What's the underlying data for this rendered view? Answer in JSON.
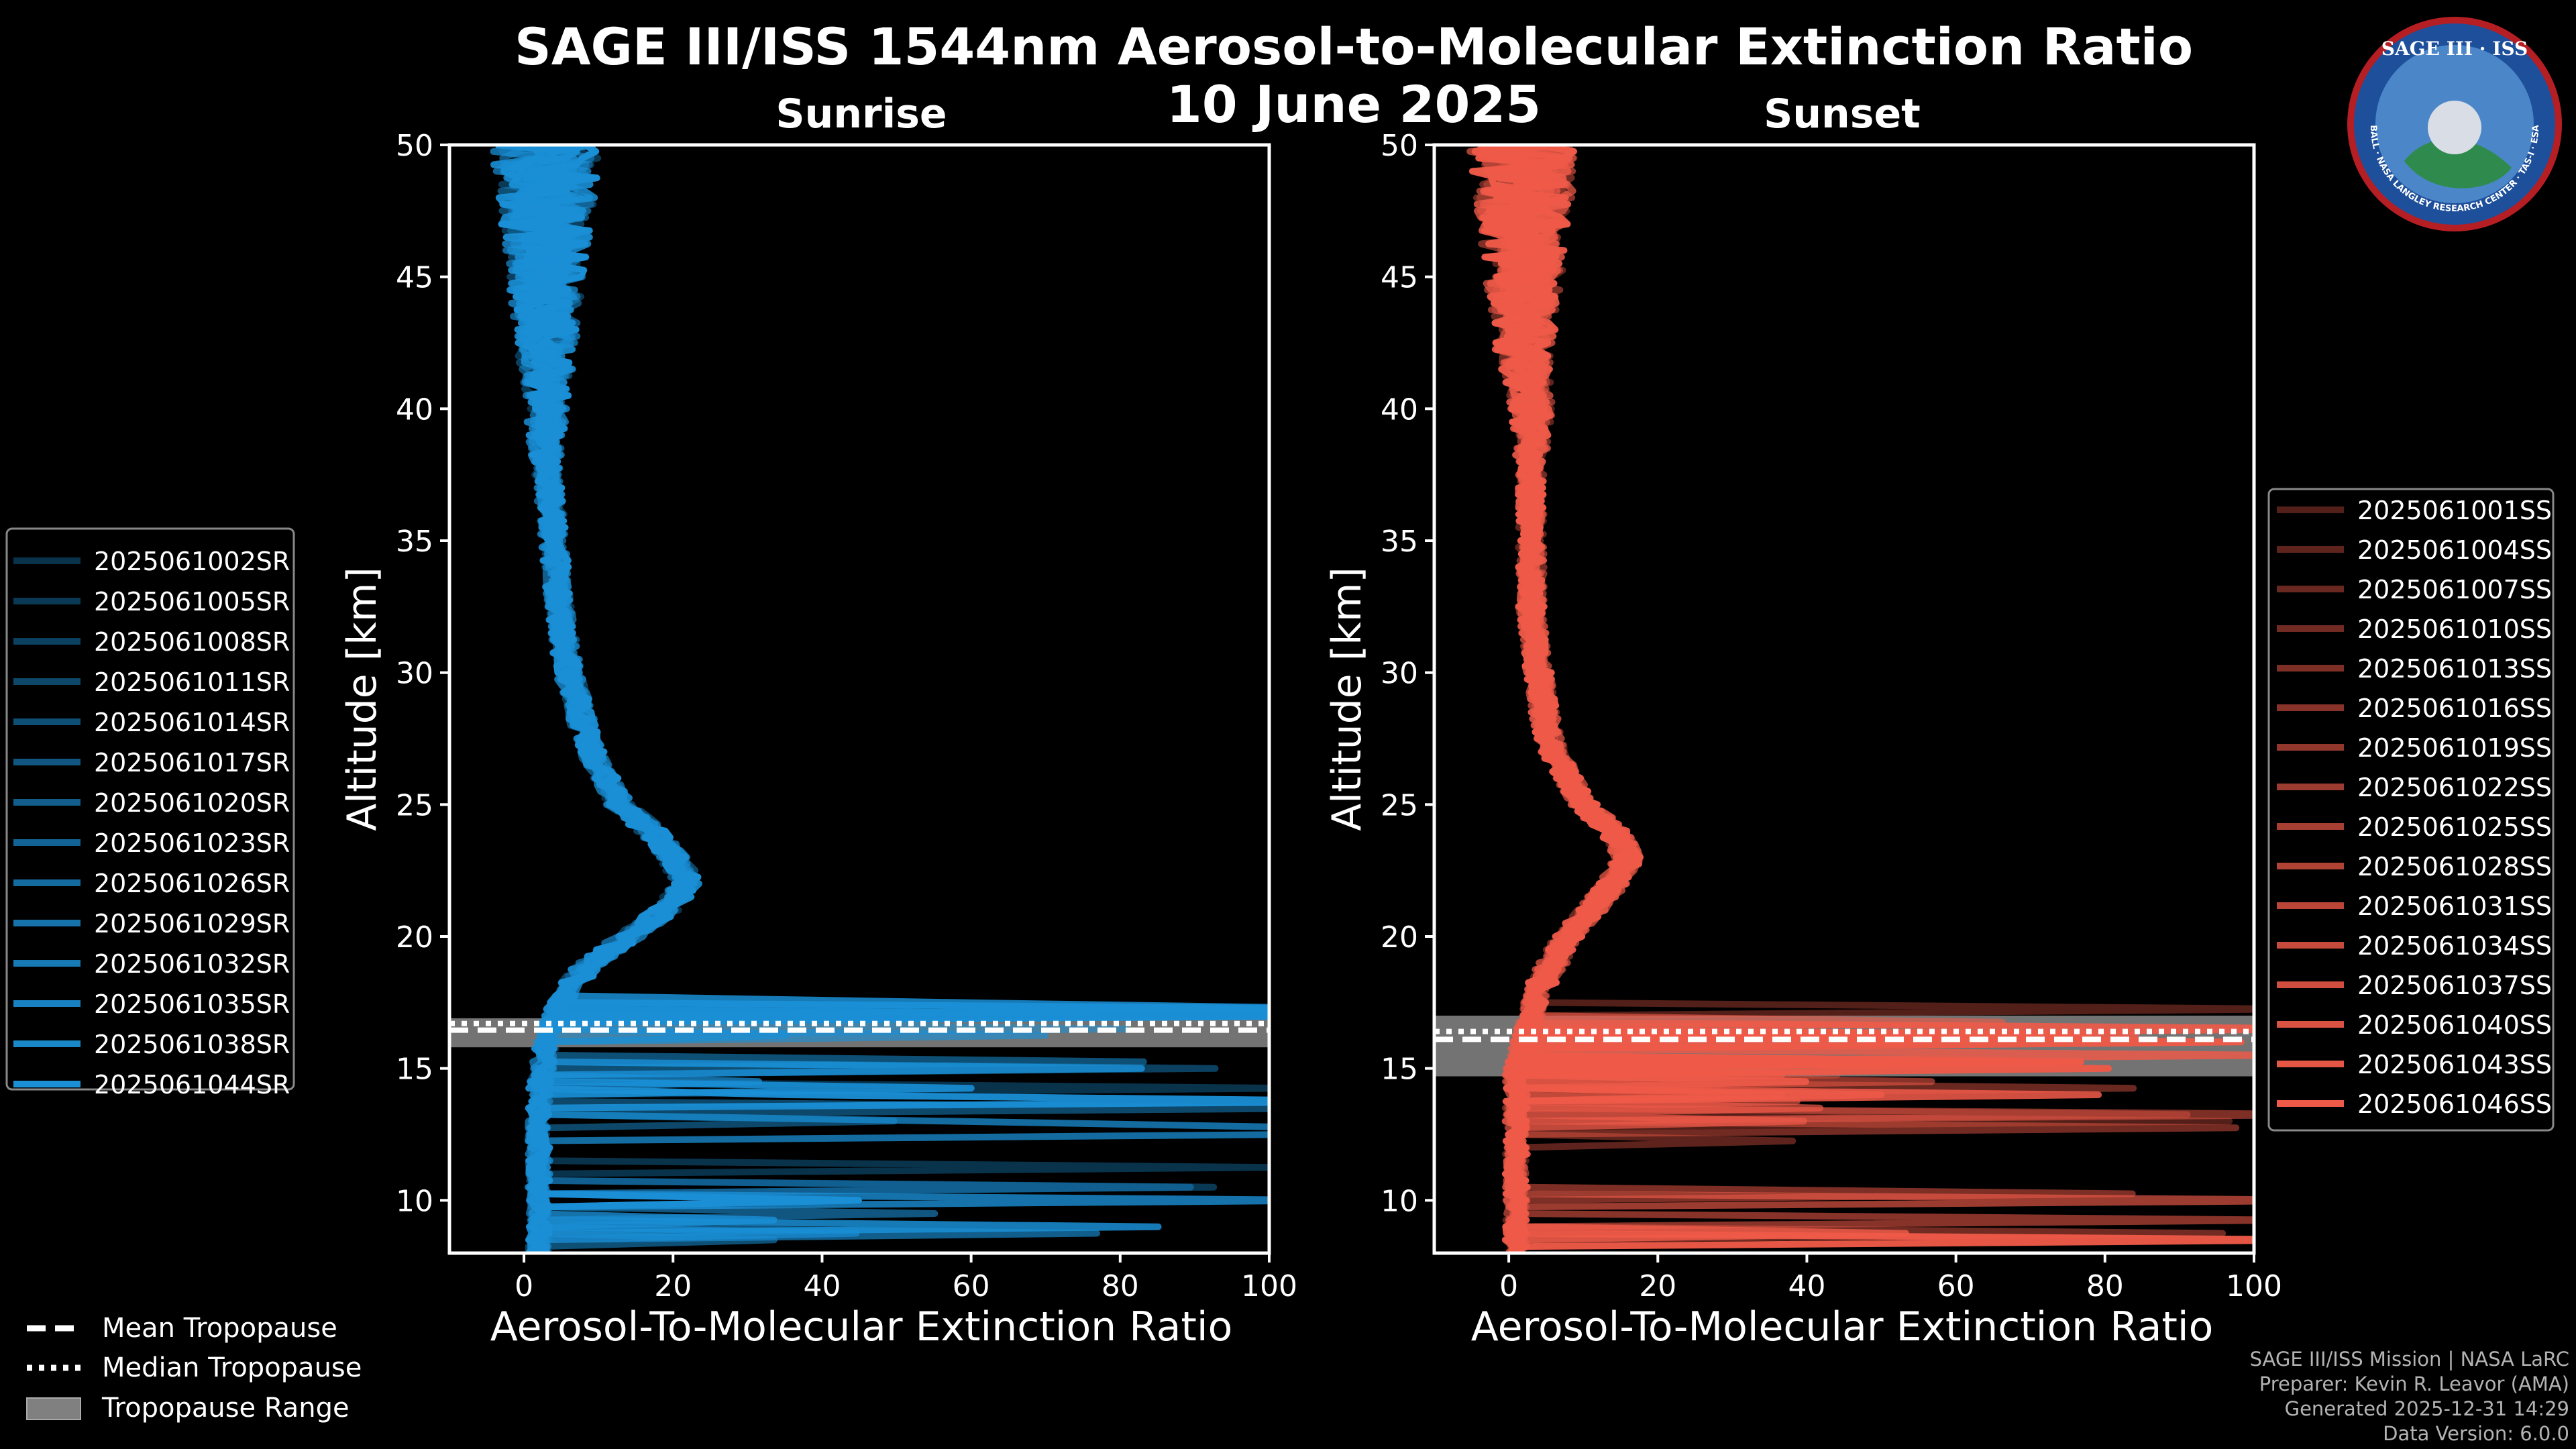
{
  "chart_data": {
    "type": "line",
    "title": "SAGE III/ISS 1544nm Aerosol-to-Molecular Extinction Ratio",
    "subtitle": "10 June 2025",
    "xlim": [
      -10,
      100
    ],
    "ylim": [
      8,
      50
    ],
    "xticks": [
      0,
      20,
      40,
      60,
      80,
      100
    ],
    "yticks": [
      10,
      15,
      20,
      25,
      30,
      35,
      40,
      45,
      50
    ],
    "panels": [
      {
        "name": "Sunrise",
        "xlabel": "Aerosol-To-Molecular Extinction Ratio",
        "ylabel": "Altitude [km]",
        "color": "#1a8fd6",
        "tropopause": {
          "mean_km": 16.45,
          "median_km": 16.7,
          "range_km": [
            15.8,
            16.9
          ]
        },
        "mean_profile": [
          [
            8,
            2
          ],
          [
            10,
            2
          ],
          [
            12,
            2
          ],
          [
            14,
            2
          ],
          [
            16,
            3
          ],
          [
            17,
            4
          ],
          [
            18,
            6
          ],
          [
            19,
            9
          ],
          [
            20,
            14
          ],
          [
            21,
            19
          ],
          [
            22,
            22
          ],
          [
            23,
            20
          ],
          [
            24,
            17
          ],
          [
            25,
            13
          ],
          [
            26,
            11
          ],
          [
            27,
            9
          ],
          [
            28,
            8
          ],
          [
            29,
            7
          ],
          [
            30,
            6
          ],
          [
            32,
            5
          ],
          [
            35,
            4
          ],
          [
            38,
            3
          ],
          [
            40,
            3
          ],
          [
            42,
            3
          ],
          [
            45,
            3
          ],
          [
            48,
            3
          ],
          [
            50,
            3
          ]
        ],
        "series_names": [
          "2025061002SR",
          "2025061005SR",
          "2025061008SR",
          "2025061011SR",
          "2025061014SR",
          "2025061017SR",
          "2025061020SR",
          "2025061023SR",
          "2025061026SR",
          "2025061029SR",
          "2025061032SR",
          "2025061035SR",
          "2025061038SR",
          "2025061044SR"
        ]
      },
      {
        "name": "Sunset",
        "xlabel": "Aerosol-To-Molecular Extinction Ratio",
        "ylabel": "Altitude [km]",
        "color": "#ef5a48",
        "tropopause": {
          "mean_km": 16.1,
          "median_km": 16.4,
          "range_km": [
            14.7,
            17.0
          ]
        },
        "mean_profile": [
          [
            8,
            1
          ],
          [
            10,
            1
          ],
          [
            12,
            1
          ],
          [
            14,
            1
          ],
          [
            15,
            1
          ],
          [
            16,
            2
          ],
          [
            17,
            3
          ],
          [
            18,
            4
          ],
          [
            19,
            6
          ],
          [
            20,
            8
          ],
          [
            21,
            11
          ],
          [
            22,
            14
          ],
          [
            23,
            16
          ],
          [
            24,
            14
          ],
          [
            25,
            10
          ],
          [
            26,
            8
          ],
          [
            27,
            6
          ],
          [
            28,
            5
          ],
          [
            30,
            4
          ],
          [
            32,
            3
          ],
          [
            35,
            3
          ],
          [
            38,
            3
          ],
          [
            40,
            3
          ],
          [
            42,
            2
          ],
          [
            45,
            2
          ],
          [
            48,
            2
          ],
          [
            50,
            2
          ]
        ],
        "series_names": [
          "2025061001SS",
          "2025061004SS",
          "2025061007SS",
          "2025061010SS",
          "2025061013SS",
          "2025061016SS",
          "2025061019SS",
          "2025061022SS",
          "2025061025SS",
          "2025061028SS",
          "2025061031SS",
          "2025061034SS",
          "2025061037SS",
          "2025061040SS",
          "2025061043SS",
          "2025061046SS"
        ]
      }
    ],
    "tropopause_legend": [
      "Mean Tropopause",
      "Median Tropopause",
      "Tropopause Range"
    ]
  },
  "logo": {
    "title": "SAGE III · ISS",
    "ring_text": "BALL · NASA LANGLEY RESEARCH CENTER · TAS-I · ESA"
  },
  "footer": [
    "SAGE III/ISS Mission | NASA LaRC",
    "Preparer: Kevin R. Leavor (AMA)",
    "Generated 2025-12-31 14:29",
    "Data Version: 6.0.0"
  ]
}
